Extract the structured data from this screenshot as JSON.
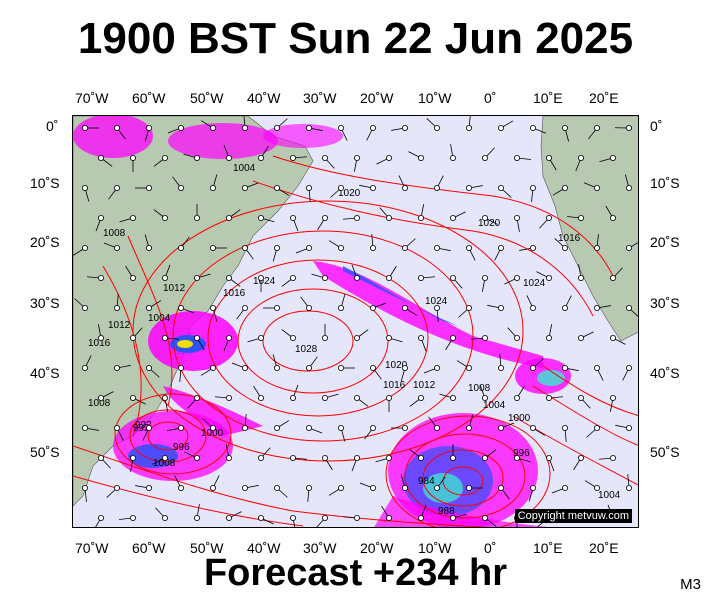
{
  "title": "1900 BST Sun 22 Jun 2025",
  "footer": "Forecast +234 hr",
  "model_code": "M3",
  "copyright": "Copyright metvuw.com",
  "lon_labels_top": [
    "70˚W",
    "60˚W",
    "50˚W",
    "40˚W",
    "30˚W",
    "20˚W",
    "10˚W",
    "0˚",
    "10˚E",
    "20˚E"
  ],
  "lon_labels_bottom": [
    "70˚W",
    "60˚W",
    "50˚W",
    "40˚W",
    "30˚W",
    "20˚W",
    "10˚W",
    "0˚",
    "10˚E",
    "20˚E"
  ],
  "lat_labels_left": [
    "0˚",
    "10˚S",
    "20˚S",
    "30˚S",
    "40˚S",
    "50˚S"
  ],
  "lat_labels_right": [
    "0˚",
    "10˚S",
    "20˚S",
    "30˚S",
    "40˚S",
    "50˚S"
  ],
  "isobar_labels": [
    "1028",
    "1024",
    "1020",
    "1016",
    "1012",
    "1008",
    "1004",
    "1000",
    "996",
    "992",
    "1024",
    "1024",
    "1020",
    "1016",
    "1012",
    "1008",
    "1004",
    "1000",
    "996",
    "992",
    "988",
    "984",
    "1016",
    "1016",
    "1012",
    "1008",
    "1004",
    "1020",
    "1008",
    "1004"
  ],
  "colors": {
    "ocean": "#e6e6fa",
    "land": "#b7c9b0",
    "isobar": "#ff0000",
    "rain_magenta": "#ff00ff",
    "rain_blue": "#3050ff",
    "rain_cyan": "#40e0d0",
    "rain_yellow": "#f0e000"
  }
}
